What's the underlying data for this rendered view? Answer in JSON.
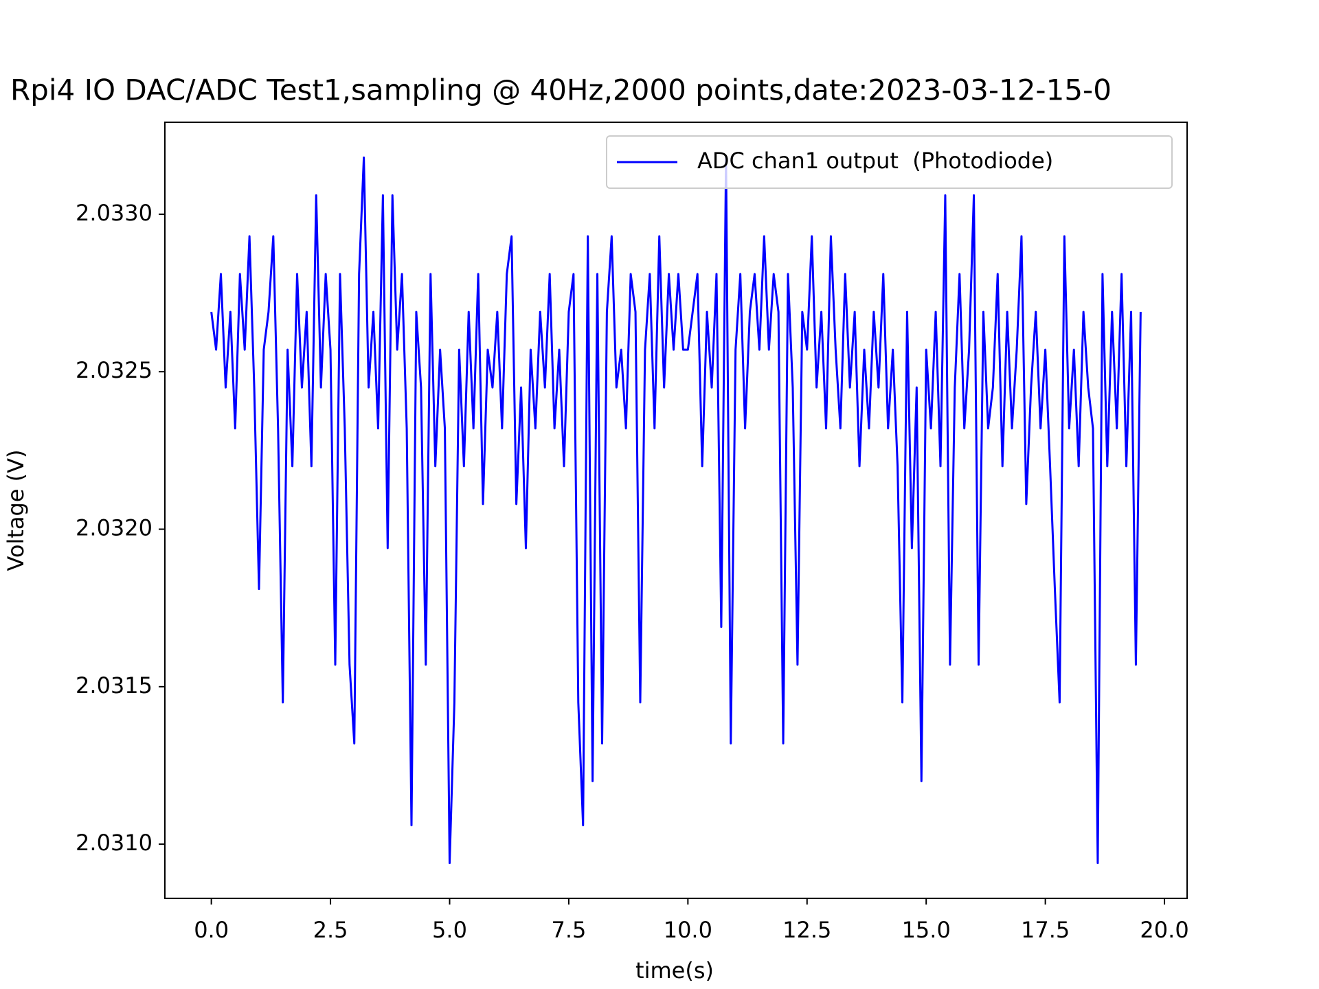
{
  "chart_data": {
    "type": "line",
    "title": "Rpi4 IO DAC/ADC Test1,sampling @ 40Hz,2000 points,date:2023-03-12-15-0",
    "x_label": "time(s)",
    "y_label": "Voltage (V)",
    "legend": "upper right",
    "xlim": [
      -0.975,
      20.475
    ],
    "xticks": [
      {
        "value": 0,
        "label": "0.0"
      },
      2.5,
      {
        "value": 5,
        "label": "5.0"
      },
      7.5,
      {
        "value": 10,
        "label": "10.0"
      },
      12.5,
      {
        "value": 15,
        "label": "15.0"
      },
      17.5,
      {
        "value": 20,
        "label": "20.0"
      }
    ],
    "ylim": [
      2.030828,
      2.033292
    ],
    "yticks": [
      {
        "value": 2.031,
        "label": "2.0310"
      },
      2.0315,
      {
        "value": 2.032,
        "label": "2.0320"
      },
      2.0325,
      {
        "value": 2.033,
        "label": "2.0330"
      }
    ],
    "x": [
      0,
      0.1,
      0.2,
      0.3,
      0.4,
      0.5,
      0.6,
      0.7,
      0.8,
      0.9,
      1,
      1.1,
      1.2,
      1.3,
      1.4,
      1.5,
      1.6,
      1.7,
      1.8,
      1.9,
      2,
      2.1,
      2.2,
      2.3,
      2.4,
      2.5,
      2.6,
      2.7,
      2.8,
      2.9,
      3,
      3.1,
      3.2,
      3.3,
      3.4,
      3.5,
      3.6,
      3.7,
      3.8,
      3.9,
      4,
      4.1,
      4.2,
      4.3,
      4.4,
      4.5,
      4.6,
      4.7,
      4.8,
      4.9,
      5,
      5.1,
      5.2,
      5.3,
      5.4,
      5.5,
      5.6,
      5.7,
      5.8,
      5.9,
      6,
      6.1,
      6.2,
      6.3,
      6.4,
      6.5,
      6.6,
      6.7,
      6.8,
      6.9,
      7,
      7.1,
      7.2,
      7.3,
      7.4,
      7.5,
      7.6,
      7.7,
      7.8,
      7.9,
      8,
      8.1,
      8.2,
      8.3,
      8.4,
      8.5,
      8.6,
      8.7,
      8.8,
      8.9,
      9,
      9.1,
      9.2,
      9.3,
      9.4,
      9.5,
      9.6,
      9.7,
      9.8,
      9.9,
      10,
      10.1,
      10.2,
      10.3,
      10.4,
      10.5,
      10.6,
      10.7,
      10.8,
      10.9,
      11,
      11.1,
      11.2,
      11.3,
      11.4,
      11.5,
      11.6,
      11.7,
      11.8,
      11.9,
      12,
      12.1,
      12.2,
      12.3,
      12.4,
      12.5,
      12.6,
      12.7,
      12.8,
      12.9,
      13,
      13.1,
      13.2,
      13.3,
      13.4,
      13.5,
      13.6,
      13.7,
      13.8,
      13.9,
      14,
      14.1,
      14.2,
      14.3,
      14.4,
      14.5,
      14.6,
      14.7,
      14.8,
      14.9,
      15,
      15.1,
      15.2,
      15.3,
      15.4,
      15.5,
      15.6,
      15.7,
      15.8,
      15.9,
      16,
      16.1,
      16.2,
      16.3,
      16.4,
      16.5,
      16.6,
      16.7,
      16.8,
      16.9,
      17,
      17.1,
      17.2,
      17.3,
      17.4,
      17.5,
      17.6,
      17.7,
      17.8,
      17.9,
      18,
      18.1,
      18.2,
      18.3,
      18.4,
      18.5,
      18.6,
      18.7,
      18.8,
      18.9,
      19,
      19.1,
      19.2,
      19.3,
      19.4,
      19.5
    ],
    "series": [
      {
        "name": "ADC chan1 output  (Photodiode)",
        "color": "#0000ff",
        "values": [
          2.03269,
          2.03257,
          2.03281,
          2.03245,
          2.03269,
          2.03232,
          2.03281,
          2.03257,
          2.03293,
          2.03245,
          2.03181,
          2.03257,
          2.03269,
          2.03293,
          2.03232,
          2.03145,
          2.03257,
          2.0322,
          2.03281,
          2.03245,
          2.03269,
          2.0322,
          2.03306,
          2.03245,
          2.03281,
          2.03257,
          2.03157,
          2.03281,
          2.03232,
          2.03157,
          2.03132,
          2.03281,
          2.03318,
          2.03245,
          2.03269,
          2.03232,
          2.03306,
          2.03194,
          2.03306,
          2.03257,
          2.03281,
          2.03232,
          2.03106,
          2.03269,
          2.03245,
          2.03157,
          2.03281,
          2.0322,
          2.03257,
          2.03232,
          2.03094,
          2.03145,
          2.03257,
          2.0322,
          2.03269,
          2.03232,
          2.03281,
          2.03208,
          2.03257,
          2.03245,
          2.03269,
          2.03232,
          2.03281,
          2.03293,
          2.03208,
          2.03245,
          2.03194,
          2.03257,
          2.03232,
          2.03269,
          2.03245,
          2.03281,
          2.03232,
          2.03257,
          2.0322,
          2.03269,
          2.03281,
          2.03145,
          2.03106,
          2.03293,
          2.0312,
          2.03281,
          2.03132,
          2.03269,
          2.03293,
          2.03245,
          2.03257,
          2.03232,
          2.03281,
          2.03269,
          2.03145,
          2.03257,
          2.03281,
          2.03232,
          2.03293,
          2.03245,
          2.03281,
          2.03257,
          2.03281,
          2.03257,
          2.03257,
          2.03269,
          2.03281,
          2.0322,
          2.03269,
          2.03245,
          2.03281,
          2.03169,
          2.03318,
          2.03132,
          2.03257,
          2.03281,
          2.03232,
          2.03269,
          2.03281,
          2.03257,
          2.03293,
          2.03257,
          2.03281,
          2.03269,
          2.03132,
          2.03281,
          2.03245,
          2.03157,
          2.03269,
          2.03257,
          2.03293,
          2.03245,
          2.03269,
          2.03232,
          2.03293,
          2.03257,
          2.03232,
          2.03281,
          2.03245,
          2.03269,
          2.0322,
          2.03257,
          2.03232,
          2.03269,
          2.03245,
          2.03281,
          2.03232,
          2.03257,
          2.0322,
          2.03145,
          2.03269,
          2.03194,
          2.03245,
          2.0312,
          2.03257,
          2.03232,
          2.03269,
          2.0322,
          2.03306,
          2.03157,
          2.03245,
          2.03281,
          2.03232,
          2.03257,
          2.03306,
          2.03157,
          2.03269,
          2.03232,
          2.03245,
          2.03281,
          2.0322,
          2.03269,
          2.03232,
          2.03257,
          2.03293,
          2.03208,
          2.03245,
          2.03269,
          2.03232,
          2.03257,
          2.0322,
          2.03181,
          2.03145,
          2.03293,
          2.03232,
          2.03257,
          2.0322,
          2.03269,
          2.03245,
          2.03232,
          2.03094,
          2.03281,
          2.0322,
          2.03269,
          2.03232,
          2.03281,
          2.0322,
          2.03269,
          2.03157,
          2.03269
        ]
      }
    ]
  }
}
